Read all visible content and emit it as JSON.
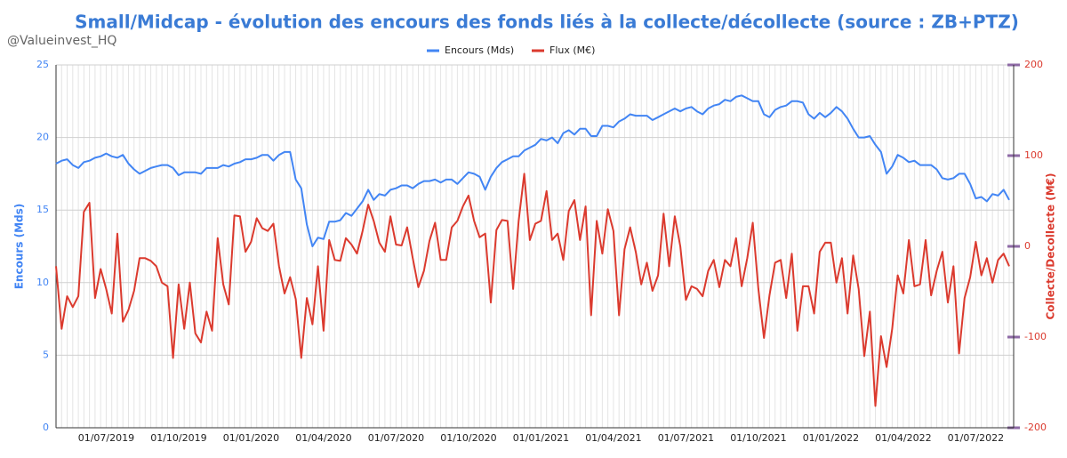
{
  "chart_data": {
    "type": "line",
    "title": "Small/Midcap - évolution des encours des fonds liés à la collecte/décollecte (source : ZB+PTZ)",
    "watermark": "@Valueinvest_HQ",
    "ylabel": "Encours (Mds)",
    "y2label": "Collecte/Decollecte (M€)",
    "categories": [
      null,
      null,
      null,
      null,
      null,
      null,
      null,
      null,
      null,
      "01/07/2019",
      null,
      null,
      null,
      null,
      null,
      null,
      null,
      null,
      null,
      null,
      null,
      null,
      "01/10/2019",
      null,
      null,
      null,
      null,
      null,
      null,
      null,
      null,
      null,
      null,
      null,
      null,
      "01/01/2020",
      null,
      null,
      null,
      null,
      null,
      null,
      null,
      null,
      null,
      null,
      null,
      null,
      "01/04/2020",
      null,
      null,
      null,
      null,
      null,
      null,
      null,
      null,
      null,
      null,
      null,
      null,
      "01/07/2020",
      null,
      null,
      null,
      null,
      null,
      null,
      null,
      null,
      null,
      null,
      null,
      null,
      "01/10/2020",
      null,
      null,
      null,
      null,
      null,
      null,
      null,
      null,
      null,
      null,
      null,
      null,
      "01/01/2021",
      null,
      null,
      null,
      null,
      null,
      null,
      null,
      null,
      null,
      null,
      null,
      null,
      "01/04/2021",
      null,
      null,
      null,
      null,
      null,
      null,
      null,
      null,
      null,
      null,
      null,
      null,
      "01/07/2021",
      null,
      null,
      null,
      null,
      null,
      null,
      null,
      null,
      null,
      null,
      null,
      null,
      "01/10/2021",
      null,
      null,
      null,
      null,
      null,
      null,
      null,
      null,
      null,
      null,
      null,
      null,
      "01/01/2022",
      null,
      null,
      null,
      null,
      null,
      null,
      null,
      null,
      null,
      null,
      null,
      null,
      "01/04/2022",
      null,
      null,
      null,
      null,
      null,
      null,
      null,
      null,
      null,
      null,
      null,
      null,
      "01/07/2022",
      null,
      null,
      null,
      null,
      null,
      null
    ],
    "series": [
      {
        "name": "Encours (Mds)",
        "color": "#4285f4",
        "axis": "y",
        "values": [
          18.2,
          18.4,
          18.5,
          18.1,
          17.9,
          18.3,
          18.4,
          18.6,
          18.7,
          18.9,
          18.7,
          18.6,
          18.8,
          18.2,
          17.8,
          17.5,
          17.7,
          17.9,
          18.0,
          18.1,
          18.1,
          17.9,
          17.4,
          17.6,
          17.6,
          17.6,
          17.5,
          17.9,
          17.9,
          17.9,
          18.1,
          18.0,
          18.2,
          18.3,
          18.5,
          18.5,
          18.6,
          18.8,
          18.8,
          18.4,
          18.8,
          19.0,
          19.0,
          17.1,
          16.5,
          14.0,
          12.5,
          13.1,
          13.0,
          14.2,
          14.2,
          14.3,
          14.8,
          14.6,
          15.1,
          15.6,
          16.4,
          15.7,
          16.1,
          16.0,
          16.4,
          16.5,
          16.7,
          16.7,
          16.5,
          16.8,
          17.0,
          17.0,
          17.1,
          16.9,
          17.1,
          17.1,
          16.8,
          17.2,
          17.6,
          17.5,
          17.3,
          16.4,
          17.3,
          17.9,
          18.3,
          18.5,
          18.7,
          18.7,
          19.1,
          19.3,
          19.5,
          19.9,
          19.8,
          20.0,
          19.6,
          20.3,
          20.5,
          20.2,
          20.6,
          20.6,
          20.1,
          20.1,
          20.8,
          20.8,
          20.7,
          21.1,
          21.3,
          21.6,
          21.5,
          21.5,
          21.5,
          21.2,
          21.4,
          21.6,
          21.8,
          22.0,
          21.8,
          22.0,
          22.1,
          21.8,
          21.6,
          22.0,
          22.2,
          22.3,
          22.6,
          22.5,
          22.8,
          22.9,
          22.7,
          22.5,
          22.5,
          21.6,
          21.4,
          21.9,
          22.1,
          22.2,
          22.5,
          22.5,
          22.4,
          21.6,
          21.3,
          21.7,
          21.4,
          21.7,
          22.1,
          21.8,
          21.3,
          20.6,
          20.0,
          20.0,
          20.1,
          19.5,
          19.0,
          17.5,
          18.0,
          18.8,
          18.6,
          18.3,
          18.4,
          18.1,
          18.1,
          18.1,
          17.8,
          17.2,
          17.1,
          17.2,
          17.5,
          17.5,
          16.8,
          15.8,
          15.9,
          15.6,
          16.1,
          16.0,
          16.4,
          15.7
        ]
      },
      {
        "name": "Flux (M€)",
        "color": "#db3a2e",
        "axis": "y2",
        "values": [
          -22,
          -91,
          -55,
          -67,
          -55,
          38,
          48,
          -57,
          -25,
          -47,
          -74,
          14,
          -83,
          -70,
          -49,
          -13,
          -13,
          -16,
          -22,
          -40,
          -44,
          -123,
          -42,
          -91,
          -40,
          -96,
          -106,
          -72,
          -93,
          9,
          -42,
          -64,
          34,
          33,
          -6,
          5,
          31,
          20,
          17,
          25,
          -22,
          -52,
          -34,
          -58,
          -123,
          -57,
          -86,
          -22,
          -93,
          7,
          -15,
          -16,
          9,
          2,
          -8,
          17,
          46,
          28,
          4,
          -6,
          33,
          2,
          1,
          21,
          -13,
          -45,
          -27,
          6,
          26,
          -15,
          -15,
          21,
          28,
          44,
          56,
          28,
          10,
          14,
          -62,
          18,
          29,
          28,
          -47,
          28,
          80,
          7,
          25,
          28,
          61,
          7,
          14,
          -15,
          39,
          51,
          7,
          44,
          -76,
          28,
          -8,
          41,
          17,
          -76,
          -3,
          21,
          -6,
          -42,
          -18,
          -49,
          -32,
          36,
          -22,
          33,
          0,
          -59,
          -44,
          -47,
          -55,
          -27,
          -15,
          -45,
          -15,
          -22,
          9,
          -44,
          -13,
          26,
          -47,
          -101,
          -54,
          -18,
          -15,
          -57,
          -8,
          -93,
          -44,
          -44,
          -74,
          -6,
          4,
          4,
          -40,
          -13,
          -74,
          -10,
          -47,
          -121,
          -72,
          -176,
          -99,
          -133,
          -91,
          -32,
          -52,
          7,
          -44,
          -42,
          7,
          -54,
          -27,
          -6,
          -62,
          -22,
          -118,
          -57,
          -34,
          5,
          -32,
          -13,
          -40,
          -15,
          -8,
          -22
        ]
      }
    ],
    "ylim": [
      0,
      25
    ],
    "yticks": [
      0,
      5,
      10,
      15,
      20,
      25
    ],
    "y2lim": [
      -200,
      200
    ],
    "y2ticks": [
      -200,
      -100,
      0,
      100,
      200
    ],
    "grid": true
  }
}
